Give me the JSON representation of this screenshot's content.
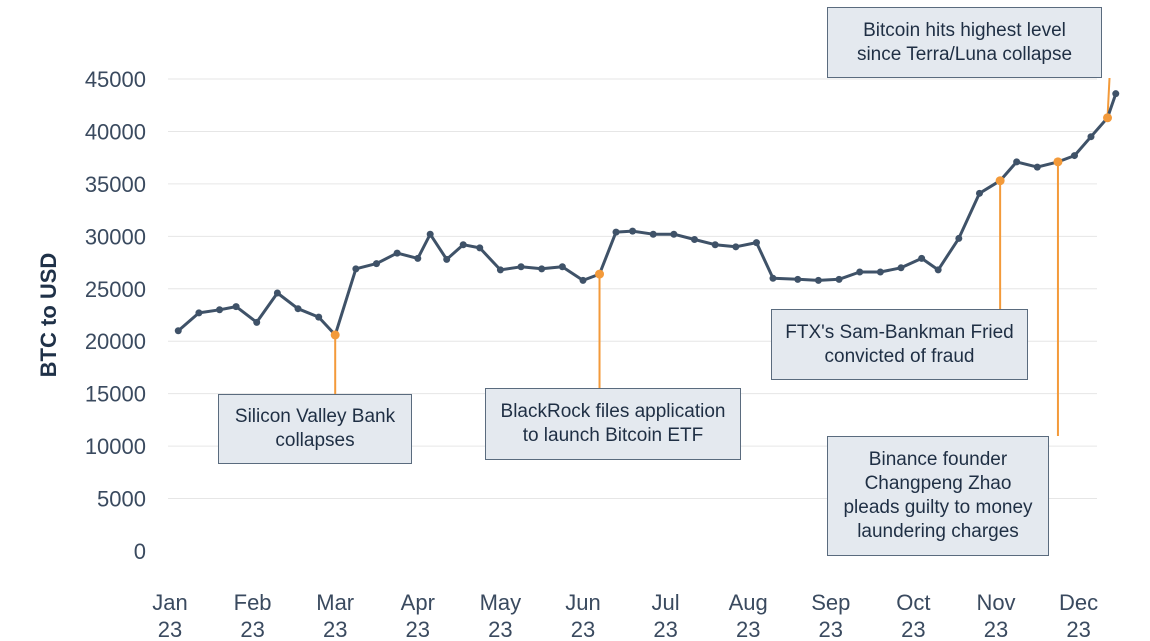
{
  "chart_data": {
    "type": "line",
    "title": "",
    "xlabel": "",
    "ylabel": "BTC to USD",
    "ylim": [
      0,
      45000
    ],
    "yticks": [
      0,
      5000,
      10000,
      15000,
      20000,
      25000,
      30000,
      35000,
      40000,
      45000
    ],
    "grid": true,
    "month_ticks": [
      {
        "month": "Jan",
        "year": "23"
      },
      {
        "month": "Feb",
        "year": "23"
      },
      {
        "month": "Mar",
        "year": "23"
      },
      {
        "month": "Apr",
        "year": "23"
      },
      {
        "month": "May",
        "year": "23"
      },
      {
        "month": "Jun",
        "year": "23"
      },
      {
        "month": "Jul",
        "year": "23"
      },
      {
        "month": "Aug",
        "year": "23"
      },
      {
        "month": "Sep",
        "year": "23"
      },
      {
        "month": "Oct",
        "year": "23"
      },
      {
        "month": "Nov",
        "year": "23"
      },
      {
        "month": "Dec",
        "year": "23"
      }
    ],
    "series": [
      {
        "name": "BTC to USD",
        "x_months": [
          0.1,
          0.35,
          0.6,
          0.8,
          1.05,
          1.3,
          1.55,
          1.8,
          2.0,
          2.25,
          2.5,
          2.75,
          3.0,
          3.15,
          3.35,
          3.55,
          3.75,
          4.0,
          4.25,
          4.5,
          4.75,
          5.0,
          5.2,
          5.4,
          5.6,
          5.85,
          6.1,
          6.35,
          6.6,
          6.85,
          7.1,
          7.3,
          7.6,
          7.85,
          8.1,
          8.35,
          8.6,
          8.85,
          9.1,
          9.3,
          9.55,
          9.8,
          10.05,
          10.25,
          10.5,
          10.75,
          10.95,
          11.15,
          11.35,
          11.45
        ],
        "values": [
          21000,
          22700,
          23000,
          23300,
          21800,
          24600,
          23100,
          22300,
          20600,
          26900,
          27400,
          28400,
          27900,
          30200,
          27800,
          29200,
          28900,
          26800,
          27100,
          26900,
          27100,
          25800,
          26400,
          30400,
          30500,
          30200,
          30200,
          29700,
          29200,
          29000,
          29400,
          26000,
          25900,
          25800,
          25900,
          26600,
          26600,
          27000,
          27900,
          26800,
          29800,
          34100,
          35300,
          37100,
          36600,
          37100,
          37700,
          39500,
          41300,
          43600
        ]
      }
    ],
    "annotations": [
      {
        "lines": [
          "Silicon Valley Bank",
          "collapses"
        ],
        "point_index": 8
      },
      {
        "lines": [
          "BlackRock files application",
          "to launch Bitcoin ETF"
        ],
        "point_index": 22
      },
      {
        "lines": [
          "FTX's Sam-Bankman Fried",
          "convicted of fraud"
        ],
        "point_index": 42
      },
      {
        "lines": [
          "Binance founder",
          "Changpeng Zhao",
          "pleads guilty to money",
          "laundering charges"
        ],
        "point_index": 45
      },
      {
        "lines": [
          "Bitcoin hits highest level",
          "since Terra/Luna collapse"
        ],
        "point_index": 48
      }
    ]
  }
}
